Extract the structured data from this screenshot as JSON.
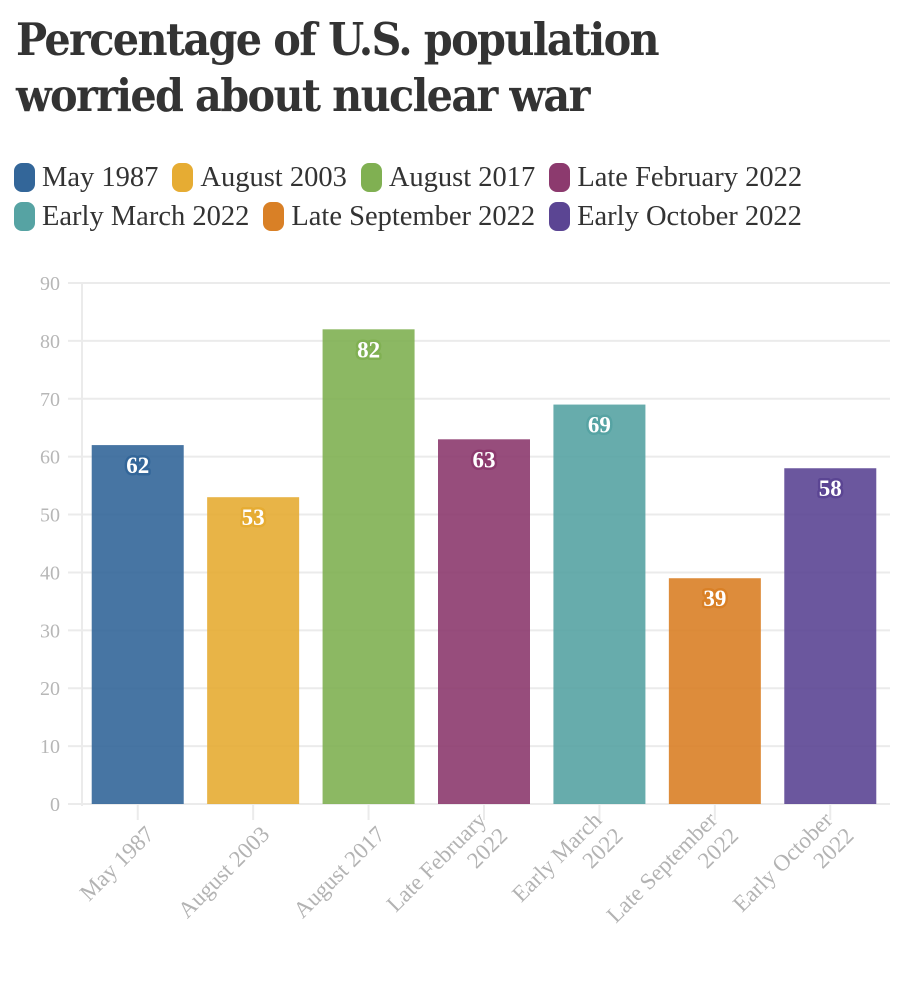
{
  "chart_data": {
    "type": "bar",
    "title": "Percentage of U.S. population worried about nuclear war",
    "xlabel": "",
    "ylabel": "",
    "categories": [
      "May 1987",
      "August 2003",
      "August 2017",
      "Late February 2022",
      "Early March 2022",
      "Late September 2022",
      "Early October 2022"
    ],
    "category_label_lines": [
      [
        "May 1987"
      ],
      [
        "August 2003"
      ],
      [
        "August 2017"
      ],
      [
        "Late February",
        "2022"
      ],
      [
        "Early March",
        "2022"
      ],
      [
        "Late September",
        "2022"
      ],
      [
        "Early October",
        "2022"
      ]
    ],
    "values": [
      62,
      53,
      82,
      63,
      69,
      39,
      58
    ],
    "data_labels": [
      "62",
      "53",
      "82",
      "63",
      "69",
      "39",
      "58"
    ],
    "colors": [
      "#336699",
      "#e6ac33",
      "#80b052",
      "#8c3a6e",
      "#56a3a3",
      "#d98026",
      "#5b4593"
    ],
    "ylim": [
      0,
      90
    ],
    "yticks": [
      0,
      10,
      20,
      30,
      40,
      50,
      60,
      70,
      80,
      90
    ],
    "ytick_labels": [
      "0",
      "10",
      "20",
      "30",
      "40",
      "50",
      "60",
      "70",
      "80",
      "90"
    ],
    "grid": true,
    "legend_position": "top",
    "legend": [
      [
        "May 1987",
        "August 2003",
        "August 2017",
        "Late February 2022"
      ],
      [
        "Early March 2022",
        "Late September 2022",
        "Early October 2022"
      ]
    ]
  }
}
